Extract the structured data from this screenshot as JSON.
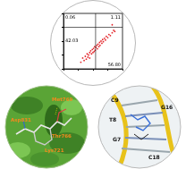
{
  "chart_data": {
    "type": "scatter",
    "log": true,
    "grid": false,
    "tick_labels": false,
    "color": "#e3262b",
    "marker": "dot",
    "xlim": [
      1,
      10000
    ],
    "ylim": [
      1,
      10000
    ],
    "xticks": [
      1,
      10,
      100,
      1000,
      10000
    ],
    "yticks": [
      1,
      10,
      100,
      1000,
      10000
    ],
    "x": [
      15,
      20,
      25,
      30,
      35,
      40,
      45,
      50,
      60,
      60,
      70,
      80,
      90,
      100,
      110,
      120,
      130,
      140,
      160,
      180,
      200,
      220,
      250,
      280,
      300,
      350,
      400,
      450,
      500,
      600,
      700,
      800,
      1000,
      1200,
      1500,
      2000,
      2500,
      3000,
      2000
    ],
    "values": [
      3,
      6,
      4,
      8,
      5,
      12,
      7,
      10,
      15,
      6,
      20,
      12,
      25,
      15,
      30,
      18,
      40,
      22,
      35,
      50,
      28,
      60,
      40,
      80,
      50,
      100,
      70,
      130,
      90,
      160,
      120,
      220,
      180,
      300,
      250,
      400,
      600,
      500,
      1500
    ],
    "gates": {
      "x": 150,
      "y": 1000
    },
    "quadrant_labels": {
      "upper_left": "0.06",
      "upper_right": "1.11",
      "lower_left": "42.03",
      "lower_right": "56.80"
    }
  },
  "docking_panel": {
    "residues": [
      "Met769",
      "Asp831",
      "Thr766",
      "Lys721"
    ]
  },
  "dna_panel": {
    "bases": [
      "C9",
      "T8",
      "G7",
      "G16",
      "C18"
    ]
  }
}
